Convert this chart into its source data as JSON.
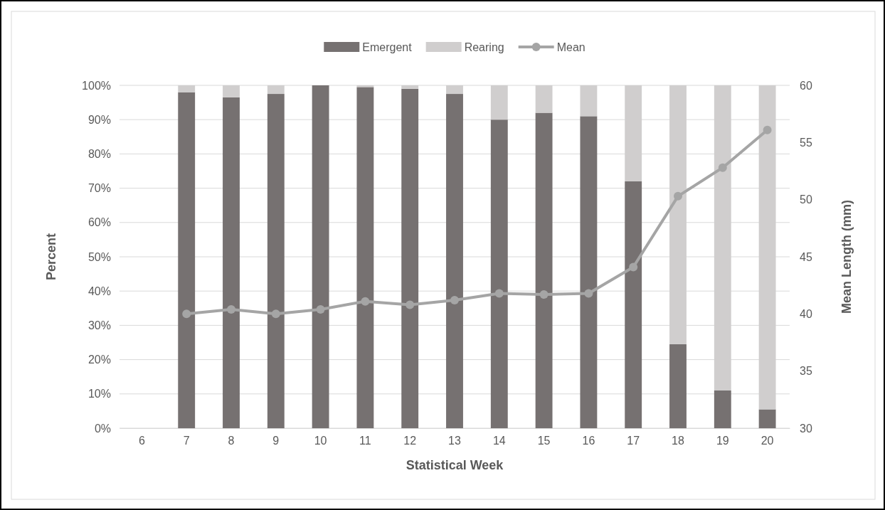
{
  "chart_data": {
    "type": "bar",
    "stacked": true,
    "xlabel": "Statistical Week",
    "ylabel": "Percent",
    "y2label": "Mean Length (mm)",
    "categories": [
      "6",
      "7",
      "8",
      "9",
      "10",
      "11",
      "12",
      "13",
      "14",
      "15",
      "16",
      "17",
      "18",
      "19",
      "20"
    ],
    "series": [
      {
        "name": "Emergent",
        "color": "#767171",
        "values": [
          null,
          98,
          96.5,
          97.5,
          100,
          99.5,
          99,
          97.5,
          90,
          92,
          91,
          72,
          24.5,
          11,
          5.5
        ]
      },
      {
        "name": "Rearing",
        "color": "#d0cece",
        "values": [
          null,
          2,
          3.5,
          2.5,
          0,
          0.5,
          1,
          2.5,
          10,
          8,
          9,
          28,
          75.5,
          89,
          94.5
        ]
      },
      {
        "name": "Mean",
        "type": "line",
        "axis": "y2",
        "color": "#a5a5a5",
        "marker": "circle",
        "values": [
          null,
          40,
          40.4,
          40,
          40.4,
          41.1,
          40.8,
          41.2,
          41.8,
          41.7,
          41.8,
          44.1,
          50.3,
          52.8,
          56.1
        ]
      }
    ],
    "ylim": [
      0,
      100
    ],
    "yticks": [
      {
        "value": 0,
        "label": "0%"
      },
      {
        "value": 10,
        "label": "10%"
      },
      {
        "value": 20,
        "label": "20%"
      },
      {
        "value": 30,
        "label": "30%"
      },
      {
        "value": 40,
        "label": "40%"
      },
      {
        "value": 50,
        "label": "50%"
      },
      {
        "value": 60,
        "label": "60%"
      },
      {
        "value": 70,
        "label": "70%"
      },
      {
        "value": 80,
        "label": "80%"
      },
      {
        "value": 90,
        "label": "90%"
      },
      {
        "value": 100,
        "label": "100%"
      }
    ],
    "y2lim": [
      30,
      60
    ],
    "y2ticks": [
      30,
      35,
      40,
      45,
      50,
      55,
      60
    ],
    "grid": "y",
    "legend": "top"
  }
}
